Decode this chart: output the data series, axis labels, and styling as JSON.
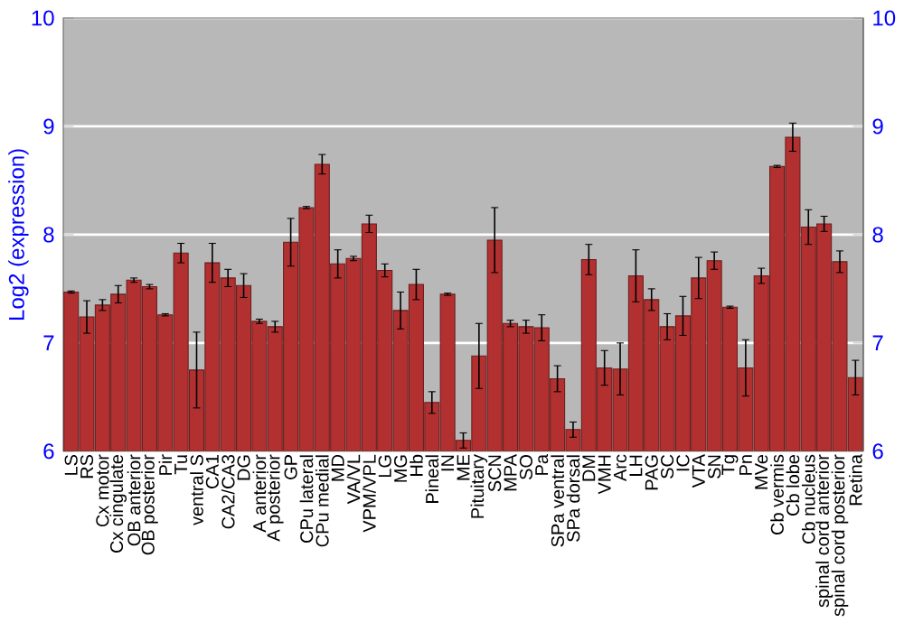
{
  "chart_data": {
    "type": "bar",
    "ylabel": "Log2 (expression)",
    "categories": [
      "LS",
      "RS",
      "Cx motor",
      "Cx cingulate",
      "OB anterior",
      "OB posterior",
      "Pir",
      "Tu",
      "ventral S",
      "CA1",
      "CA2/CA3",
      "DG",
      "A anterior",
      "A posterior",
      "GP",
      "CPu lateral",
      "CPu medial",
      "MD",
      "VA/VL",
      "VPM/VPL",
      "LG",
      "MG",
      "Hb",
      "Pineal",
      "IN",
      "ME",
      "Pituitary",
      "SCN",
      "MPA",
      "SO",
      "Pa",
      "SPa ventral",
      "SPa dorsal",
      "DM",
      "VMH",
      "Arc",
      "LH",
      "PAG",
      "SC",
      "IC",
      "VTA",
      "SN",
      "Tg",
      "Pn",
      "MVe",
      "Cb vermis",
      "Cb lobe",
      "Cb nucleus",
      "spinal cord anterior",
      "spinal cord posterior",
      "Retina"
    ],
    "values": [
      7.47,
      7.24,
      7.35,
      7.45,
      7.58,
      7.52,
      7.26,
      7.83,
      6.75,
      7.74,
      7.6,
      7.53,
      7.2,
      7.15,
      7.93,
      8.25,
      8.65,
      7.73,
      7.78,
      8.1,
      7.67,
      7.3,
      7.54,
      6.45,
      7.45,
      6.1,
      6.88,
      7.95,
      7.18,
      7.15,
      7.14,
      6.67,
      6.2,
      7.77,
      6.77,
      6.76,
      7.62,
      7.4,
      7.15,
      7.25,
      7.6,
      7.76,
      7.33,
      6.77,
      7.62,
      8.63,
      8.9,
      8.07,
      8.1,
      7.75,
      6.68
    ],
    "errors": [
      0.01,
      0.15,
      0.05,
      0.08,
      0.02,
      0.02,
      0.01,
      0.09,
      0.35,
      0.18,
      0.08,
      0.11,
      0.02,
      0.05,
      0.22,
      0.01,
      0.09,
      0.13,
      0.02,
      0.08,
      0.06,
      0.17,
      0.14,
      0.1,
      0.01,
      0.07,
      0.3,
      0.3,
      0.03,
      0.06,
      0.12,
      0.12,
      0.07,
      0.14,
      0.16,
      0.24,
      0.24,
      0.1,
      0.12,
      0.18,
      0.19,
      0.08,
      0.01,
      0.26,
      0.07,
      0.01,
      0.13,
      0.16,
      0.07,
      0.1,
      0.16
    ],
    "color": "#b23030",
    "ylim": [
      6,
      10
    ],
    "yticks": [
      6,
      7,
      8,
      9,
      10
    ],
    "y2lim": [
      6,
      10
    ],
    "y2ticks": [
      6,
      7,
      8,
      9,
      10
    ],
    "grid": "y"
  }
}
